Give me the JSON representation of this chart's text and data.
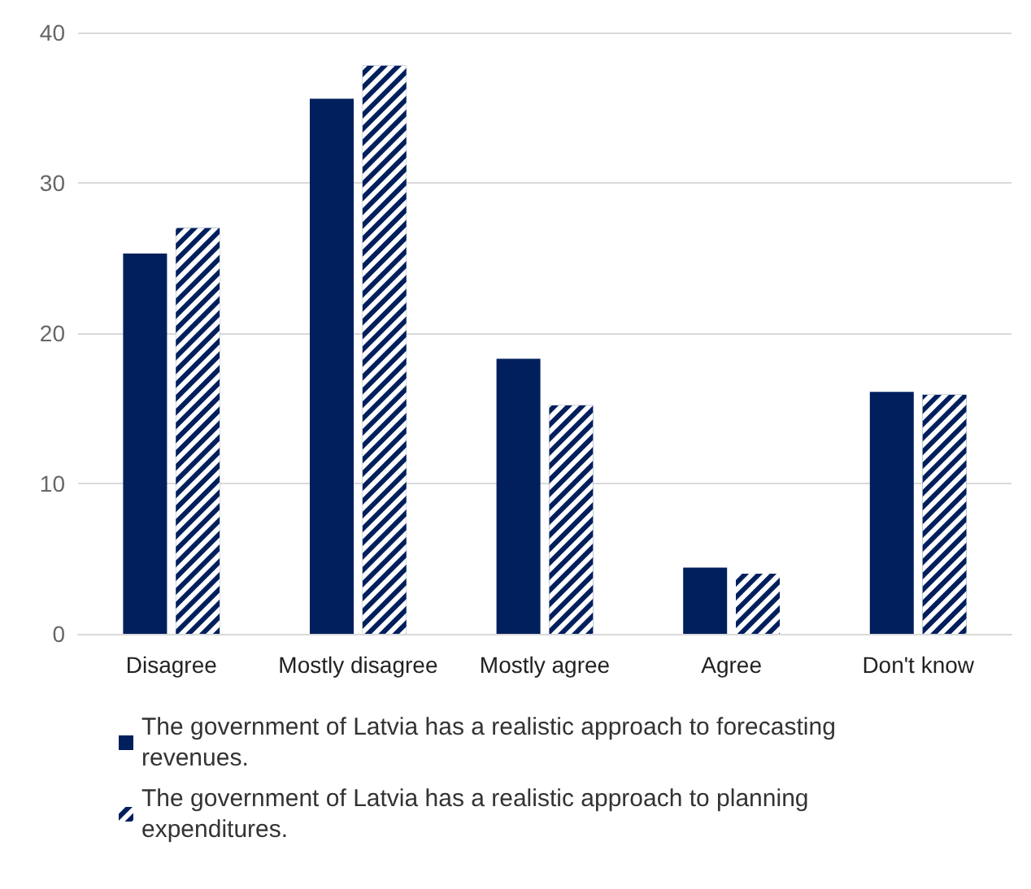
{
  "chart_data": {
    "type": "bar",
    "categories": [
      "Disagree",
      "Mostly disagree",
      "Mostly agree",
      "Agree",
      "Don't know"
    ],
    "series": [
      {
        "name": "The government of Latvia has a realistic approach to forecasting revenues.",
        "color": "#001f5c",
        "values": [
          25.3,
          35.6,
          18.3,
          4.4,
          16.1
        ]
      },
      {
        "name": "The government of Latvia has a realistic approach to planning expenditures.",
        "color": "#001f5c",
        "values": [
          27.0,
          37.8,
          15.2,
          4.0,
          15.9
        ]
      }
    ],
    "ylim": [
      0,
      40
    ],
    "yticks": [
      0,
      10,
      20,
      30,
      40
    ],
    "grid": "y",
    "legend": "bottom"
  }
}
